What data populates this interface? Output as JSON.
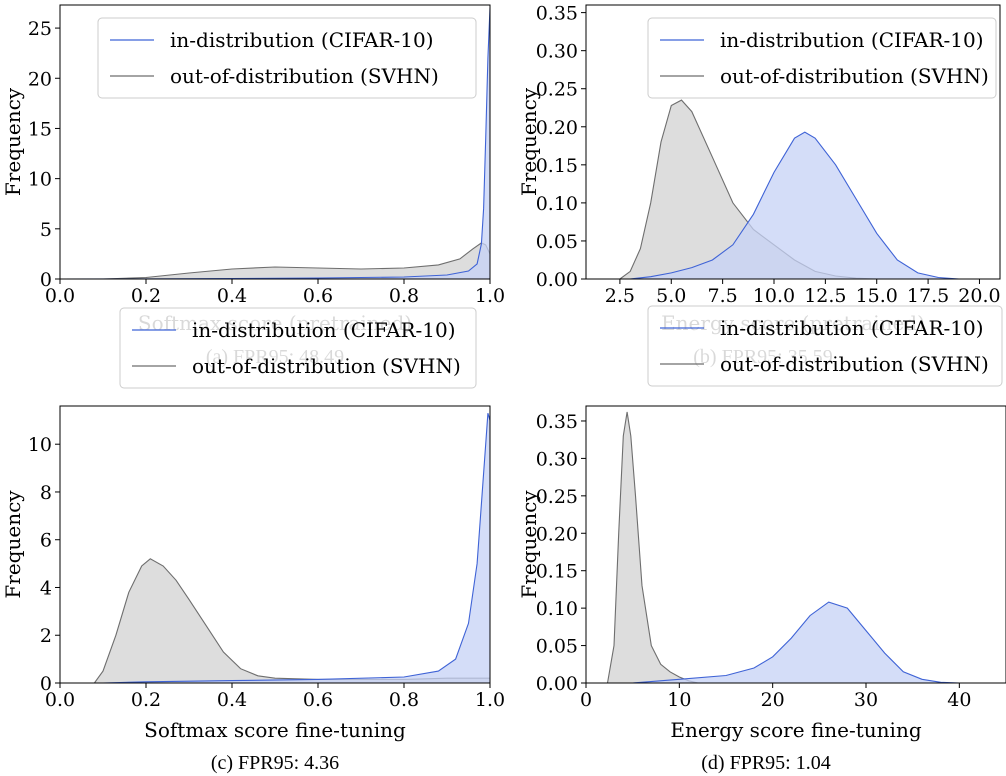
{
  "colors": {
    "in_line": "#3f63d6",
    "in_fill": "#c6d1f5",
    "out_line": "#6e6e6e",
    "out_fill": "#d9d9d9"
  },
  "chart_data": [
    {
      "type": "area",
      "caption": "(a) FPR95: 48.49",
      "xlabel": "Softmax score (pretrained)",
      "ylabel": "Frequency",
      "xlim": [
        0.0,
        1.0
      ],
      "ylim": [
        0,
        27.3
      ],
      "xticks": [
        0.0,
        0.2,
        0.4,
        0.6,
        0.8,
        1.0
      ],
      "xtick_labels": [
        "0.0",
        "0.2",
        "0.4",
        "0.6",
        "0.8",
        "1.0"
      ],
      "yticks": [
        0,
        5,
        10,
        15,
        20,
        25
      ],
      "ytick_labels": [
        "0",
        "5",
        "10",
        "15",
        "20",
        "25"
      ],
      "legend": "top-center",
      "grid": false,
      "series": [
        {
          "name": "in-distribution (CIFAR-10)",
          "color": "in",
          "x": [
            0.0,
            0.2,
            0.4,
            0.6,
            0.8,
            0.9,
            0.95,
            0.97,
            0.98,
            0.985,
            0.99,
            0.995,
            1.0
          ],
          "values": [
            0.0,
            0.01,
            0.05,
            0.1,
            0.2,
            0.4,
            0.8,
            1.5,
            3.5,
            7,
            14,
            22,
            27
          ]
        },
        {
          "name": "out-of-distribution (SVHN)",
          "color": "out",
          "x": [
            0.1,
            0.2,
            0.3,
            0.4,
            0.5,
            0.6,
            0.7,
            0.8,
            0.88,
            0.93,
            0.96,
            0.98,
            0.99,
            1.0
          ],
          "values": [
            0.0,
            0.15,
            0.6,
            1.0,
            1.2,
            1.1,
            1.0,
            1.1,
            1.4,
            2.0,
            3.0,
            3.6,
            3.4,
            2.5
          ]
        }
      ]
    },
    {
      "type": "area",
      "caption": "(b) FPR95: 35.59",
      "xlabel": "Energy score (pretrained)",
      "ylabel": "Frequency",
      "xlim": [
        0.85,
        21.0
      ],
      "ylim": [
        0,
        0.36
      ],
      "xticks": [
        2.5,
        5.0,
        7.5,
        10.0,
        12.5,
        15.0,
        17.5,
        20.0
      ],
      "xtick_labels": [
        "2.5",
        "5.0",
        "7.5",
        "10.0",
        "12.5",
        "15.0",
        "17.5",
        "20.0"
      ],
      "yticks": [
        0,
        0.05,
        0.1,
        0.15,
        0.2,
        0.25,
        0.3,
        0.35
      ],
      "ytick_labels": [
        "0.00",
        "0.05",
        "0.10",
        "0.15",
        "0.20",
        "0.25",
        "0.30",
        "0.35"
      ],
      "legend": "top-right",
      "grid": false,
      "series": [
        {
          "name": "in-distribution (CIFAR-10)",
          "color": "in",
          "x": [
            3,
            4,
            5,
            6,
            7,
            8,
            9,
            10,
            11,
            11.5,
            12,
            13,
            14,
            15,
            16,
            17,
            18,
            19
          ],
          "values": [
            0.0,
            0.003,
            0.008,
            0.015,
            0.025,
            0.045,
            0.085,
            0.14,
            0.185,
            0.193,
            0.185,
            0.15,
            0.105,
            0.06,
            0.025,
            0.008,
            0.002,
            0.0
          ]
        },
        {
          "name": "out-of-distribution (SVHN)",
          "color": "out",
          "x": [
            2.5,
            3,
            3.5,
            4,
            4.5,
            5,
            5.5,
            6,
            7,
            8,
            9,
            10,
            11,
            12,
            13,
            14,
            15
          ],
          "values": [
            0.0,
            0.01,
            0.04,
            0.1,
            0.18,
            0.228,
            0.235,
            0.22,
            0.16,
            0.1,
            0.065,
            0.045,
            0.025,
            0.01,
            0.004,
            0.001,
            0.0
          ]
        }
      ]
    },
    {
      "type": "area",
      "caption": "(c) FPR95: 4.36",
      "xlabel": "Softmax score fine-tuning",
      "ylabel": "Frequency",
      "xlim": [
        0.0,
        1.0
      ],
      "ylim": [
        0,
        11.6
      ],
      "xticks": [
        0.0,
        0.2,
        0.4,
        0.6,
        0.8,
        1.0
      ],
      "xtick_labels": [
        "0.0",
        "0.2",
        "0.4",
        "0.6",
        "0.8",
        "1.0"
      ],
      "yticks": [
        0,
        2,
        4,
        6,
        8,
        10
      ],
      "ytick_labels": [
        "0",
        "2",
        "4",
        "6",
        "8",
        "10"
      ],
      "legend": "top-right",
      "grid": false,
      "series": [
        {
          "name": "in-distribution (CIFAR-10)",
          "color": "in",
          "x": [
            0.1,
            0.2,
            0.4,
            0.6,
            0.8,
            0.88,
            0.92,
            0.95,
            0.97,
            0.98,
            0.99,
            0.995,
            1.0
          ],
          "values": [
            0.0,
            0.05,
            0.1,
            0.15,
            0.25,
            0.5,
            1.0,
            2.5,
            5,
            7.5,
            10,
            11.3,
            11.0
          ]
        },
        {
          "name": "out-of-distribution (SVHN)",
          "color": "out",
          "x": [
            0.08,
            0.1,
            0.13,
            0.16,
            0.19,
            0.21,
            0.24,
            0.27,
            0.3,
            0.34,
            0.38,
            0.42,
            0.46,
            0.5,
            0.6,
            0.7,
            0.8,
            0.9,
            0.95,
            1.0
          ],
          "values": [
            0.0,
            0.5,
            2.0,
            3.8,
            4.9,
            5.2,
            4.9,
            4.3,
            3.5,
            2.4,
            1.3,
            0.6,
            0.3,
            0.2,
            0.15,
            0.15,
            0.15,
            0.2,
            0.2,
            0.2
          ]
        }
      ]
    },
    {
      "type": "area",
      "caption": "(d) FPR95: 1.04",
      "xlabel": "Energy score fine-tuning",
      "ylabel": "Frequency",
      "xlim": [
        0,
        45
      ],
      "ylim": [
        0,
        0.37
      ],
      "xticks": [
        0,
        10,
        20,
        30,
        40
      ],
      "xtick_labels": [
        "0",
        "10",
        "20",
        "30",
        "40"
      ],
      "yticks": [
        0,
        0.05,
        0.1,
        0.15,
        0.2,
        0.25,
        0.3,
        0.35
      ],
      "ytick_labels": [
        "0.00",
        "0.05",
        "0.10",
        "0.15",
        "0.20",
        "0.25",
        "0.30",
        "0.35"
      ],
      "legend": "top-right",
      "grid": false,
      "series": [
        {
          "name": "in-distribution (CIFAR-10)",
          "color": "in",
          "x": [
            5,
            10,
            15,
            18,
            20,
            22,
            24,
            26,
            28,
            30,
            32,
            34,
            36,
            38,
            40
          ],
          "values": [
            0.0,
            0.005,
            0.01,
            0.02,
            0.035,
            0.06,
            0.09,
            0.108,
            0.1,
            0.07,
            0.04,
            0.015,
            0.005,
            0.001,
            0.0
          ]
        },
        {
          "name": "out-of-distribution (SVHN)",
          "color": "out",
          "x": [
            2.3,
            3,
            3.5,
            4,
            4.4,
            4.8,
            5.3,
            6,
            7,
            8,
            9,
            10,
            11,
            12
          ],
          "values": [
            0.0,
            0.05,
            0.2,
            0.33,
            0.362,
            0.33,
            0.25,
            0.13,
            0.05,
            0.025,
            0.015,
            0.008,
            0.003,
            0.0
          ]
        }
      ]
    }
  ]
}
